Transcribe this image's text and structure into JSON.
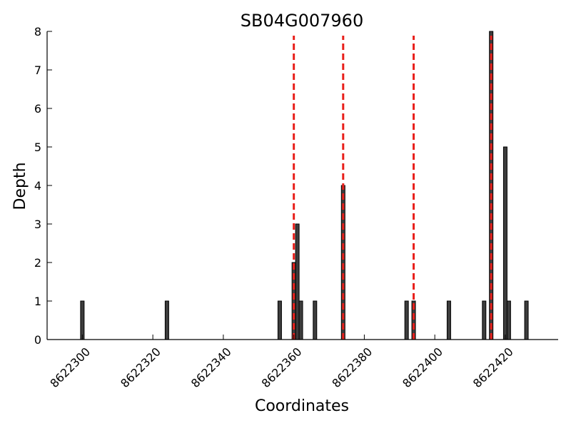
{
  "chart_data": {
    "type": "bar",
    "title": "SB04G007960",
    "xlabel": "Coordinates",
    "ylabel": "Depth",
    "xlim": [
      8622290,
      8622435
    ],
    "ylim": [
      0,
      8
    ],
    "x_ticks": [
      8622300,
      8622320,
      8622340,
      8622360,
      8622380,
      8622400,
      8622420
    ],
    "y_ticks": [
      0,
      1,
      2,
      3,
      4,
      5,
      6,
      7,
      8
    ],
    "bars": [
      {
        "x": 8622300,
        "value": 1
      },
      {
        "x": 8622324,
        "value": 1
      },
      {
        "x": 8622356,
        "value": 1
      },
      {
        "x": 8622360,
        "value": 2
      },
      {
        "x": 8622361,
        "value": 3
      },
      {
        "x": 8622362,
        "value": 1
      },
      {
        "x": 8622366,
        "value": 1
      },
      {
        "x": 8622374,
        "value": 4
      },
      {
        "x": 8622392,
        "value": 1
      },
      {
        "x": 8622394,
        "value": 1
      },
      {
        "x": 8622404,
        "value": 1
      },
      {
        "x": 8622414,
        "value": 1
      },
      {
        "x": 8622416,
        "value": 8
      },
      {
        "x": 8622420,
        "value": 5
      },
      {
        "x": 8622421,
        "value": 1
      },
      {
        "x": 8622426,
        "value": 1
      }
    ],
    "markers": [
      8622360,
      8622374,
      8622394,
      8622416
    ],
    "bar_color": "#3d3d3d",
    "marker_color": "#e8201c",
    "grid": false
  }
}
